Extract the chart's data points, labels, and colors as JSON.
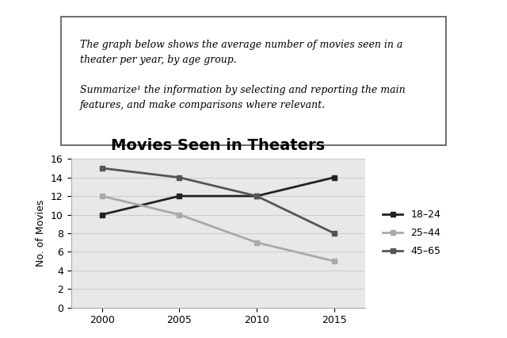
{
  "title": "Movies Seen in Theaters",
  "xlabel": "",
  "ylabel": "No. of Movies",
  "years": [
    2000,
    2005,
    2010,
    2015
  ],
  "series": {
    "18-24": {
      "values": [
        10,
        12,
        12,
        14
      ],
      "color": "#222222",
      "marker": "s",
      "linewidth": 2.0
    },
    "25-44": {
      "values": [
        12,
        10,
        7,
        5
      ],
      "color": "#aaaaaa",
      "marker": "s",
      "linewidth": 2.0
    },
    "45-65": {
      "values": [
        15,
        14,
        12,
        8
      ],
      "color": "#555555",
      "marker": "s",
      "linewidth": 2.0
    }
  },
  "ylim": [
    0,
    16
  ],
  "yticks": [
    0,
    2,
    4,
    6,
    8,
    10,
    12,
    14,
    16
  ],
  "xticks": [
    2000,
    2005,
    2010,
    2015
  ],
  "legend_labels": [
    "18–24",
    "25–44",
    "45–65"
  ],
  "grid_color": "#cccccc",
  "chart_bg": "#e8e8e8",
  "page_bg": "#ffffff",
  "text_box_content_line1": "The graph below shows the average number of movies seen in a",
  "text_box_content_line2": "theater per year, by age group.",
  "text_box_content_line3": "",
  "text_box_content_line4": "Summarize¹ the information by selecting and reporting the main",
  "text_box_content_line5": "features, and make comparisons where relevant.",
  "title_fontsize": 14,
  "label_fontsize": 9,
  "tick_fontsize": 9,
  "text_fontsize": 9
}
